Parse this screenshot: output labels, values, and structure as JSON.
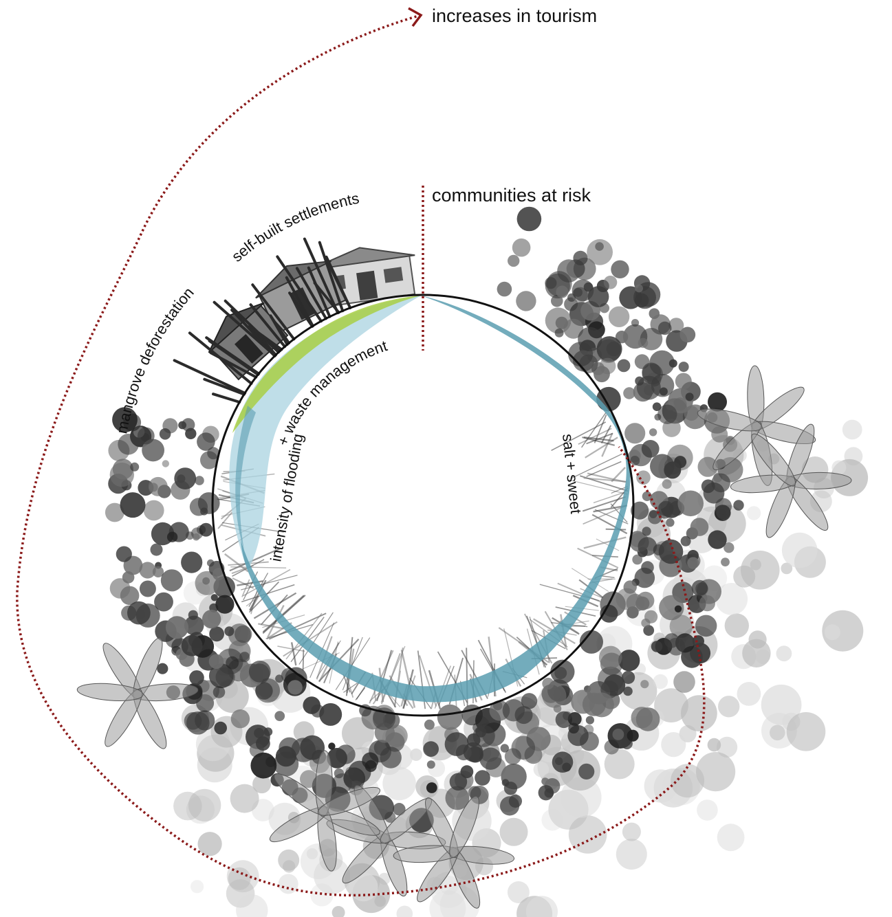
{
  "labels": {
    "top_effect": "increases in tourism",
    "risk": "communities at risk",
    "settlements": "self-built settlements",
    "deforestation": "mangrove deforestation",
    "flooding": "intensity of flooding",
    "waste": "+ waste management",
    "salt_sweet": "salt + sweet"
  },
  "colors": {
    "dotted_arrow": "#8b1a1a",
    "water_band": "#5b9db0",
    "water_band_light": "#a9d3e0",
    "settlement_band": "#a8cf45",
    "ring": "#111111",
    "foliage_dark": "#3a3a3a",
    "foliage_mid": "#6e6e6e",
    "foliage_light": "#b9b9b9",
    "foliage_pale": "#dcdcdc"
  },
  "icons": {
    "arrowhead": "chevron-right-icon",
    "houses": "house-icon",
    "trees": "tree-icon",
    "palms": "palm-icon"
  }
}
